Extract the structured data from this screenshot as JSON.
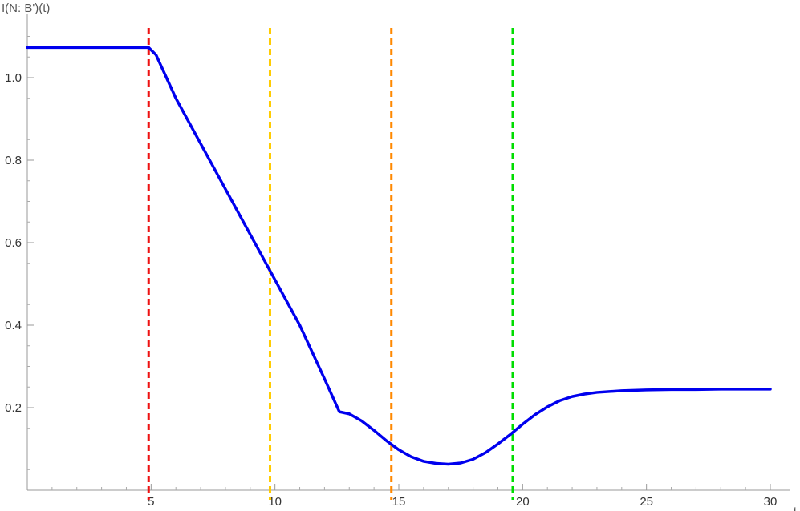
{
  "chart_data": {
    "type": "line",
    "title": "",
    "xlabel": "t",
    "ylabel": "I(N: B')(t)",
    "xlim": [
      0,
      30
    ],
    "ylim": [
      0,
      1.1
    ],
    "x_ticks": [
      5,
      10,
      15,
      20,
      25,
      30
    ],
    "x_tick_labels": [
      "5",
      "10",
      "15",
      "20",
      "25",
      "30"
    ],
    "y_ticks": [
      0.2,
      0.4,
      0.6,
      0.8,
      1.0
    ],
    "y_tick_labels": [
      "0.2",
      "0.4",
      "0.6",
      "0.8",
      "1.0"
    ],
    "grid": false,
    "series": [
      {
        "color": "#0000ee",
        "x": [
          0,
          4.9,
          5.2,
          6,
          7,
          8,
          9,
          10,
          11,
          12,
          12.6,
          13,
          13.5,
          14,
          14.5,
          15,
          15.5,
          16,
          16.5,
          17,
          17.5,
          18,
          18.5,
          19,
          19.5,
          20,
          20.5,
          21,
          21.5,
          22,
          22.5,
          23,
          24,
          25,
          26,
          27,
          28,
          29,
          30
        ],
        "y": [
          1.073,
          1.073,
          1.055,
          0.95,
          0.84,
          0.73,
          0.62,
          0.51,
          0.4,
          0.27,
          0.19,
          0.185,
          0.168,
          0.145,
          0.12,
          0.098,
          0.081,
          0.07,
          0.065,
          0.063,
          0.066,
          0.075,
          0.091,
          0.112,
          0.135,
          0.16,
          0.183,
          0.202,
          0.217,
          0.227,
          0.233,
          0.237,
          0.241,
          0.243,
          0.244,
          0.244,
          0.245,
          0.245,
          0.245
        ]
      }
    ],
    "vertical_lines": [
      {
        "x": 4.9,
        "color": "#ee1111",
        "style": "dashed"
      },
      {
        "x": 9.8,
        "color": "#ffcc00",
        "style": "dashed"
      },
      {
        "x": 14.7,
        "color": "#ff8800",
        "style": "dashed"
      },
      {
        "x": 19.6,
        "color": "#00dd00",
        "style": "dashed"
      }
    ]
  }
}
